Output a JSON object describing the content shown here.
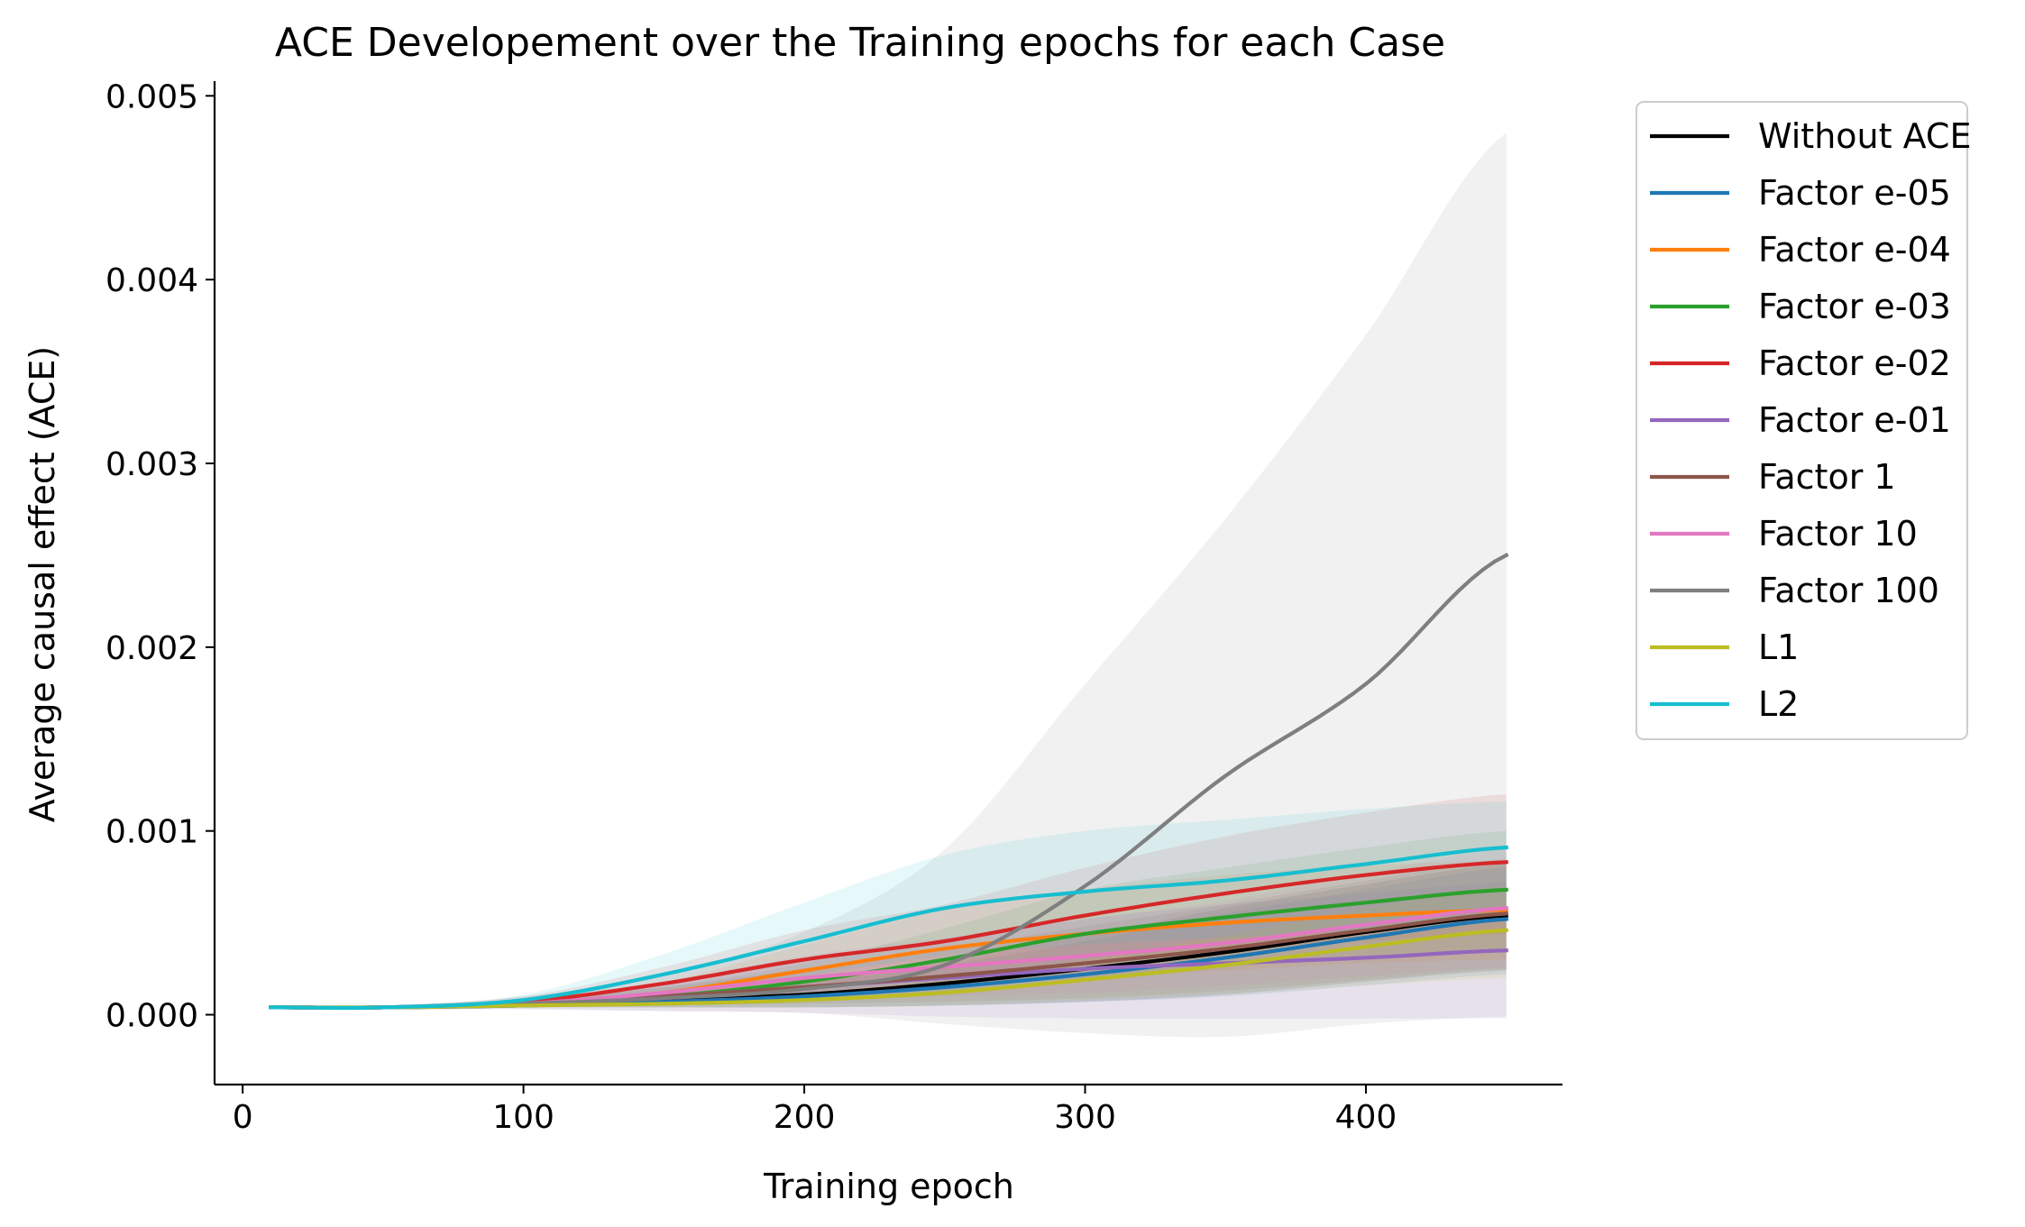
{
  "chart_data": {
    "type": "line",
    "title": "ACE Developement over the Training epochs for each Case",
    "xlabel": "Training epoch",
    "ylabel": "Average causal effect (ACE)",
    "xlim": [
      -10,
      470
    ],
    "ylim": [
      -0.00038,
      0.00508
    ],
    "xticks": [
      0,
      100,
      200,
      300,
      400
    ],
    "xtick_labels": [
      "0",
      "100",
      "200",
      "300",
      "400"
    ],
    "yticks": [
      0.0,
      0.001,
      0.002,
      0.003,
      0.004,
      0.005
    ],
    "ytick_labels": [
      "0.000",
      "0.001",
      "0.002",
      "0.003",
      "0.004",
      "0.005"
    ],
    "grid": false,
    "legend_position": "outside-right",
    "x": [
      10,
      50,
      100,
      150,
      200,
      250,
      300,
      350,
      400,
      450
    ],
    "series": [
      {
        "name": "Without ACE",
        "color": "#000000",
        "values": [
          4e-05,
          4e-05,
          6e-05,
          8e-05,
          0.00011,
          0.00017,
          0.00025,
          0.00034,
          0.00045,
          0.00054
        ],
        "lower": [
          4e-05,
          3e-05,
          4e-05,
          4e-05,
          4e-05,
          5e-05,
          7e-05,
          0.00011,
          0.00018,
          0.00024
        ],
        "upper": [
          4e-05,
          5e-05,
          8e-05,
          0.00012,
          0.0002,
          0.0003,
          0.00043,
          0.00058,
          0.00071,
          0.00082
        ]
      },
      {
        "name": "Factor e-05",
        "color": "#1f77b4",
        "values": [
          4e-05,
          4e-05,
          5e-05,
          7e-05,
          0.0001,
          0.00015,
          0.00022,
          0.00031,
          0.00042,
          0.00052
        ],
        "lower": [
          4e-05,
          3e-05,
          4e-05,
          4e-05,
          4e-05,
          5e-05,
          7e-05,
          0.0001,
          0.00016,
          0.00022
        ],
        "upper": [
          4e-05,
          5e-05,
          7e-05,
          0.0001,
          0.00017,
          0.00027,
          0.0004,
          0.00055,
          0.00068,
          0.0008
        ]
      },
      {
        "name": "Factor e-04",
        "color": "#ff7f0e",
        "values": [
          4e-05,
          4e-05,
          6e-05,
          0.00012,
          0.00024,
          0.00036,
          0.00044,
          0.0005,
          0.00054,
          0.00057
        ],
        "lower": [
          4e-05,
          3e-05,
          4e-05,
          6e-05,
          0.0001,
          0.00015,
          0.0002,
          0.00024,
          0.00028,
          0.0003
        ],
        "upper": [
          4e-05,
          5e-05,
          8e-05,
          0.00018,
          0.00038,
          0.00057,
          0.00068,
          0.00076,
          0.00081,
          0.00084
        ]
      },
      {
        "name": "Factor e-03",
        "color": "#2ca02c",
        "values": [
          4e-05,
          4e-05,
          6e-05,
          0.0001,
          0.00018,
          0.0003,
          0.00044,
          0.00053,
          0.00061,
          0.00068
        ],
        "lower": [
          4e-05,
          3e-05,
          4e-05,
          5e-05,
          8e-05,
          0.00013,
          0.0002,
          0.00026,
          0.00031,
          0.00035
        ],
        "upper": [
          4e-05,
          5e-05,
          8e-05,
          0.00015,
          0.00028,
          0.00047,
          0.00068,
          0.0008,
          0.00091,
          0.001
        ]
      },
      {
        "name": "Factor e-02",
        "color": "#d62728",
        "values": [
          4e-05,
          4e-05,
          7e-05,
          0.00017,
          0.0003,
          0.0004,
          0.00054,
          0.00066,
          0.00076,
          0.00083
        ],
        "lower": [
          4e-05,
          3e-05,
          4e-05,
          8e-05,
          0.00014,
          0.0002,
          0.00028,
          0.00035,
          0.0004,
          0.00044
        ],
        "upper": [
          4e-05,
          5e-05,
          0.0001,
          0.00026,
          0.00046,
          0.0006,
          0.0008,
          0.00097,
          0.0011,
          0.0012
        ]
      },
      {
        "name": "Factor e-01",
        "color": "#9467bd",
        "values": [
          4e-05,
          4e-05,
          6e-05,
          0.0001,
          0.00015,
          0.0002,
          0.00025,
          0.00028,
          0.00031,
          0.00035
        ],
        "lower": [
          4e-05,
          3e-05,
          3e-05,
          2e-05,
          1e-05,
          -1e-05,
          -2e-05,
          -2e-05,
          -2e-05,
          -2e-05
        ],
        "upper": [
          4e-05,
          5e-05,
          9e-05,
          0.00018,
          0.00029,
          0.0004,
          0.00052,
          0.0006,
          0.00066,
          0.00072
        ]
      },
      {
        "name": "Factor 1",
        "color": "#8c564b",
        "values": [
          4e-05,
          4e-05,
          6e-05,
          0.0001,
          0.00015,
          0.00021,
          0.00028,
          0.00036,
          0.00046,
          0.00055
        ],
        "lower": [
          4e-05,
          3e-05,
          4e-05,
          5e-05,
          6e-05,
          7e-05,
          9e-05,
          0.00013,
          0.00019,
          0.00025
        ],
        "upper": [
          4e-05,
          5e-05,
          8e-05,
          0.00015,
          0.00025,
          0.00036,
          0.00048,
          0.0006,
          0.00073,
          0.00085
        ]
      },
      {
        "name": "Factor 10",
        "color": "#e377c2",
        "values": [
          4e-05,
          4e-05,
          6e-05,
          0.00012,
          0.0002,
          0.00026,
          0.00032,
          0.00039,
          0.00049,
          0.00058
        ],
        "lower": [
          4e-05,
          3e-05,
          4e-05,
          6e-05,
          8e-05,
          0.0001,
          0.00012,
          0.00016,
          0.00021,
          0.00026
        ],
        "upper": [
          4e-05,
          5e-05,
          8e-05,
          0.00018,
          0.00032,
          0.00042,
          0.00052,
          0.00062,
          0.00077,
          0.0009
        ]
      },
      {
        "name": "Factor 100",
        "color": "#7f7f7f",
        "values": [
          4e-05,
          4e-05,
          6e-05,
          9e-05,
          0.00014,
          0.00027,
          0.0007,
          0.0013,
          0.0018,
          0.0025
        ],
        "lower": [
          4e-05,
          3e-05,
          3e-05,
          2e-05,
          1e-05,
          -5e-05,
          -0.0001,
          -0.00012,
          -5e-05,
          -1e-05
        ],
        "upper": [
          4e-05,
          5e-05,
          0.0001,
          0.00022,
          0.00045,
          0.0009,
          0.0018,
          0.0027,
          0.0037,
          0.0048
        ]
      },
      {
        "name": "L1",
        "color": "#bcbd22",
        "values": [
          4e-05,
          4e-05,
          5e-05,
          6e-05,
          8e-05,
          0.00012,
          0.00019,
          0.00027,
          0.00037,
          0.00046
        ],
        "lower": [
          4e-05,
          3e-05,
          4e-05,
          4e-05,
          4e-05,
          5e-05,
          8e-05,
          0.00011,
          0.00016,
          0.0002
        ],
        "upper": [
          4e-05,
          5e-05,
          6e-05,
          8e-05,
          0.00012,
          0.00019,
          0.0003,
          0.00043,
          0.00058,
          0.0007
        ]
      },
      {
        "name": "L2",
        "color": "#17becf",
        "values": [
          4e-05,
          4e-05,
          8e-05,
          0.00022,
          0.0004,
          0.00058,
          0.00067,
          0.00073,
          0.00082,
          0.00091
        ],
        "lower": [
          4e-05,
          3e-05,
          5e-05,
          0.00011,
          0.00021,
          0.00032,
          0.00038,
          0.00042,
          0.00046,
          0.00052
        ],
        "upper": [
          4e-05,
          5e-05,
          0.00011,
          0.00033,
          0.00061,
          0.00087,
          0.001,
          0.00106,
          0.00112,
          0.00116
        ]
      }
    ]
  }
}
